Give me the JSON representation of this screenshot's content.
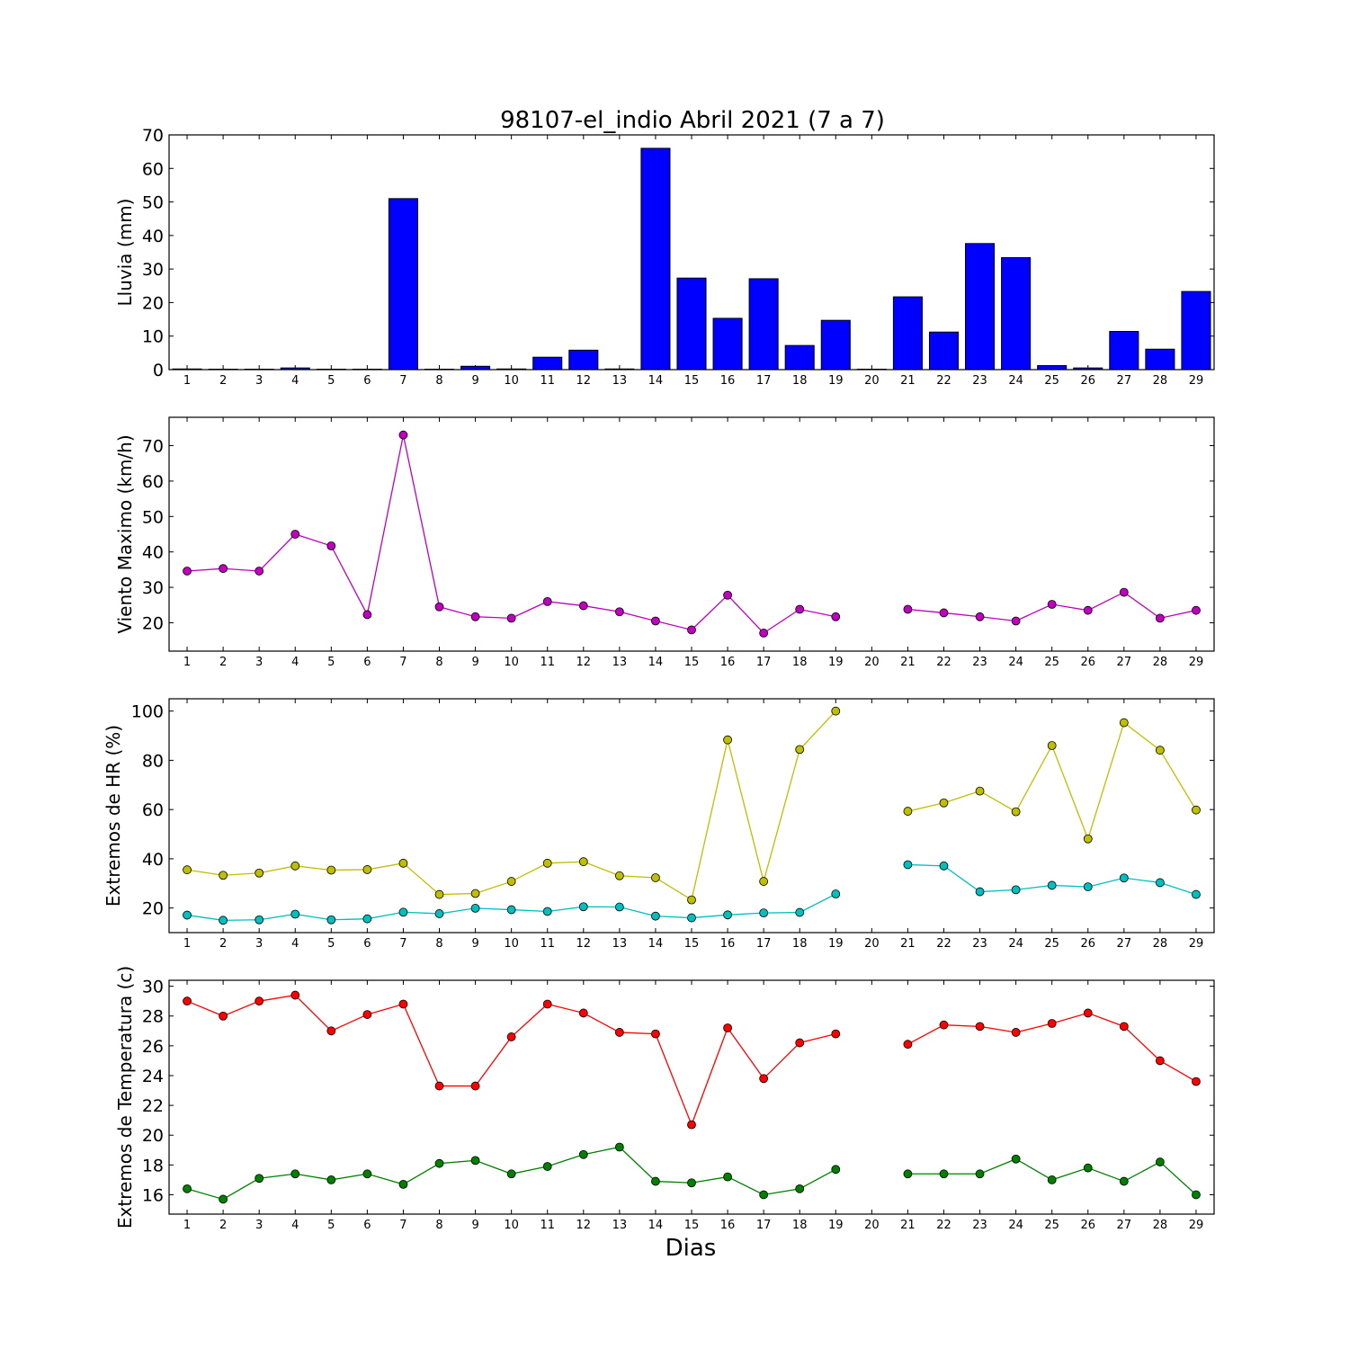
{
  "title": "98107-el_indio Abril 2021  (7 a 7)",
  "xlabel": "Dias",
  "days": [
    1,
    2,
    3,
    4,
    5,
    6,
    7,
    8,
    9,
    10,
    11,
    12,
    13,
    14,
    15,
    16,
    17,
    18,
    19,
    20,
    21,
    22,
    23,
    24,
    25,
    26,
    27,
    28,
    29
  ],
  "colors": {
    "lluvia": "#0000ff",
    "viento": "#bf00bf",
    "hr_max": "#bfbf00",
    "hr_min": "#00bfbf",
    "temp_max": "#ff0000",
    "temp_min": "#008000"
  },
  "chart_data": [
    {
      "type": "bar",
      "ylabel": "Lluvia (mm)",
      "ylim": [
        0,
        70
      ],
      "yticks": [
        0,
        10,
        20,
        30,
        40,
        50,
        60,
        70
      ],
      "xlim": [
        0.5,
        29.5
      ],
      "categories": [
        1,
        2,
        3,
        4,
        5,
        6,
        7,
        8,
        9,
        10,
        11,
        12,
        13,
        14,
        15,
        16,
        17,
        18,
        19,
        20,
        21,
        22,
        23,
        24,
        25,
        26,
        27,
        28,
        29
      ],
      "series": [
        {
          "color_key": "lluvia",
          "values": [
            0.2,
            0,
            0,
            0.5,
            0,
            0,
            51,
            0,
            1,
            0.2,
            3.7,
            5.8,
            0.2,
            66,
            27.3,
            15.3,
            27.1,
            7.2,
            14.7,
            0,
            21.7,
            11.2,
            37.6,
            33.4,
            1.2,
            0.5,
            11.4,
            6.1,
            23.3
          ]
        }
      ]
    },
    {
      "type": "line",
      "ylabel": "Viento Maximo (km/h)",
      "ylim": [
        12,
        78
      ],
      "yticks": [
        20,
        30,
        40,
        50,
        60,
        70
      ],
      "xlim": [
        0.5,
        29.5
      ],
      "x": [
        1,
        2,
        3,
        4,
        5,
        6,
        7,
        8,
        9,
        10,
        11,
        12,
        13,
        14,
        15,
        16,
        17,
        18,
        19,
        20,
        21,
        22,
        23,
        24,
        25,
        26,
        27,
        28,
        29
      ],
      "series": [
        {
          "color_key": "viento",
          "values": [
            34.6,
            35.3,
            34.6,
            45,
            41.7,
            22.3,
            73,
            24.5,
            21.7,
            21.3,
            26,
            24.8,
            23.1,
            20.5,
            18,
            27.8,
            17.1,
            23.8,
            21.7,
            null,
            23.8,
            22.8,
            21.7,
            20.5,
            25.2,
            23.5,
            28.6,
            21.3,
            23.5
          ]
        }
      ]
    },
    {
      "type": "line",
      "ylabel": "Extremos de HR (%)",
      "ylim": [
        10,
        105
      ],
      "yticks": [
        20,
        40,
        60,
        80,
        100
      ],
      "xlim": [
        0.5,
        29.5
      ],
      "x": [
        1,
        2,
        3,
        4,
        5,
        6,
        7,
        8,
        9,
        10,
        11,
        12,
        13,
        14,
        15,
        16,
        17,
        18,
        19,
        20,
        21,
        22,
        23,
        24,
        25,
        26,
        27,
        28,
        29
      ],
      "series": [
        {
          "color_key": "hr_max",
          "values": [
            35.5,
            33.3,
            34.2,
            37.1,
            35.4,
            35.6,
            38.2,
            25.5,
            25.9,
            30.8,
            38.2,
            38.8,
            33.1,
            32.3,
            23.3,
            88.3,
            30.8,
            84.4,
            100,
            null,
            59.3,
            62.7,
            67.5,
            59.1,
            86,
            48.1,
            95.3,
            84.1,
            59.8
          ]
        },
        {
          "color_key": "hr_min",
          "values": [
            17.1,
            15,
            15.2,
            17.5,
            15.2,
            15.6,
            18.3,
            17.7,
            19.9,
            19.3,
            18.6,
            20.5,
            20.4,
            16.7,
            16,
            17.2,
            18,
            18.2,
            25.7,
            null,
            37.6,
            37.1,
            26.6,
            27.4,
            29.2,
            28.6,
            32.2,
            30.3,
            25.5
          ]
        }
      ]
    },
    {
      "type": "line",
      "ylabel": "Extremos de Temperatura (c)",
      "ylim": [
        14.7,
        30.4
      ],
      "yticks": [
        16,
        18,
        20,
        22,
        24,
        26,
        28,
        30
      ],
      "xlim": [
        0.5,
        29.5
      ],
      "x": [
        1,
        2,
        3,
        4,
        5,
        6,
        7,
        8,
        9,
        10,
        11,
        12,
        13,
        14,
        15,
        16,
        17,
        18,
        19,
        20,
        21,
        22,
        23,
        24,
        25,
        26,
        27,
        28,
        29
      ],
      "series": [
        {
          "color_key": "temp_max",
          "values": [
            29,
            28,
            29,
            29.4,
            27,
            28.1,
            28.8,
            23.3,
            23.3,
            26.6,
            28.8,
            28.2,
            26.9,
            26.8,
            20.7,
            27.2,
            23.8,
            26.2,
            26.8,
            null,
            26.1,
            27.4,
            27.3,
            26.9,
            27.5,
            28.2,
            27.3,
            25,
            23.6
          ]
        },
        {
          "color_key": "temp_min",
          "values": [
            16.4,
            15.7,
            17.1,
            17.4,
            17,
            17.4,
            16.7,
            18.1,
            18.3,
            17.4,
            17.9,
            18.7,
            19.2,
            16.9,
            16.8,
            17.2,
            16,
            16.4,
            17.7,
            null,
            17.4,
            17.4,
            17.4,
            18.4,
            17,
            17.8,
            16.9,
            18.2,
            16
          ]
        }
      ]
    }
  ]
}
